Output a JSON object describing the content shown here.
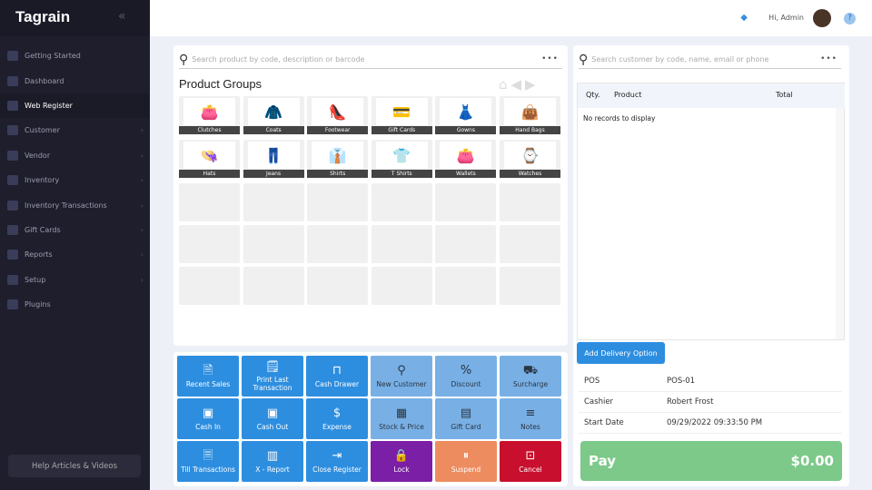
{
  "sidebar": {
    "logo": "Tagrain",
    "help": "Help Articles & Videos",
    "items": [
      {
        "label": "Getting Started",
        "chev": false
      },
      {
        "label": "Dashboard",
        "chev": false
      },
      {
        "label": "Web Register",
        "chev": false,
        "active": true
      },
      {
        "label": "Customer",
        "chev": true
      },
      {
        "label": "Vendor",
        "chev": true
      },
      {
        "label": "Inventory",
        "chev": true
      },
      {
        "label": "Inventory Transactions",
        "chev": true
      },
      {
        "label": "Gift Cards",
        "chev": true
      },
      {
        "label": "Reports",
        "chev": true
      },
      {
        "label": "Setup",
        "chev": true
      },
      {
        "label": "Plugins",
        "chev": false
      }
    ]
  },
  "topbar": {
    "greeting": "Hi, Admin",
    "help": "?"
  },
  "products": {
    "search_placeholder": "Search product by code, description or barcode",
    "title": "Product Groups",
    "groups": [
      {
        "label": "Clutches",
        "icon": "👛"
      },
      {
        "label": "Coats",
        "icon": "🧥"
      },
      {
        "label": "Footwear",
        "icon": "👠"
      },
      {
        "label": "Gift Cards",
        "icon": "💳"
      },
      {
        "label": "Gowns",
        "icon": "👗"
      },
      {
        "label": "Hand Bags",
        "icon": "👜"
      },
      {
        "label": "Hats",
        "icon": "👒"
      },
      {
        "label": "Jeans",
        "icon": "👖"
      },
      {
        "label": "Shirts",
        "icon": "👔"
      },
      {
        "label": "T Shirts",
        "icon": "👕"
      },
      {
        "label": "Wallets",
        "icon": "👛"
      },
      {
        "label": "Watches",
        "icon": "⌚"
      }
    ]
  },
  "actions": [
    {
      "label": "Recent Sales",
      "icon": "🗎",
      "color": "#2d8ee0"
    },
    {
      "label": "Print Last Transaction",
      "icon": "🗒",
      "color": "#2d8ee0"
    },
    {
      "label": "Cash Drawer",
      "icon": "⊓",
      "color": "#2d8ee0"
    },
    {
      "label": "New Customer",
      "icon": "⚲",
      "color": "#78b0e6"
    },
    {
      "label": "Discount",
      "icon": "%",
      "color": "#78b0e6"
    },
    {
      "label": "Surcharge",
      "icon": "⛟",
      "color": "#78b0e6"
    },
    {
      "label": "Cash In",
      "icon": "▣",
      "color": "#2d8ee0"
    },
    {
      "label": "Cash Out",
      "icon": "▣",
      "color": "#2d8ee0"
    },
    {
      "label": "Expense",
      "icon": "$",
      "color": "#2d8ee0"
    },
    {
      "label": "Stock & Price",
      "icon": "▦",
      "color": "#78b0e6"
    },
    {
      "label": "Gift Card",
      "icon": "▤",
      "color": "#78b0e6"
    },
    {
      "label": "Notes",
      "icon": "≡",
      "color": "#78b0e6"
    },
    {
      "label": "Till Transactions",
      "icon": "🗏",
      "color": "#2d8ee0"
    },
    {
      "label": "X - Report",
      "icon": "▥",
      "color": "#2d8ee0"
    },
    {
      "label": "Close Register",
      "icon": "⇥",
      "color": "#2d8ee0"
    },
    {
      "label": "Lock",
      "icon": "🔒",
      "color": "#7b1fa6"
    },
    {
      "label": "Suspend",
      "icon": "⏸",
      "color": "#ed8c5e"
    },
    {
      "label": "Cancel",
      "icon": "⊡",
      "color": "#c8102e"
    }
  ],
  "cart": {
    "search_placeholder": "Search customer by code, name, email or phone",
    "col_qty": "Qty.",
    "col_product": "Product",
    "col_total": "Total",
    "empty": "No records to display",
    "delivery": "Add Delivery Option",
    "info": [
      {
        "label": "POS",
        "value": "POS-01"
      },
      {
        "label": "Cashier",
        "value": "Robert Frost"
      },
      {
        "label": "Start Date",
        "value": "09/29/2022 09:33:50 PM"
      }
    ],
    "pay_label": "Pay",
    "pay_amount": "$0.00"
  }
}
